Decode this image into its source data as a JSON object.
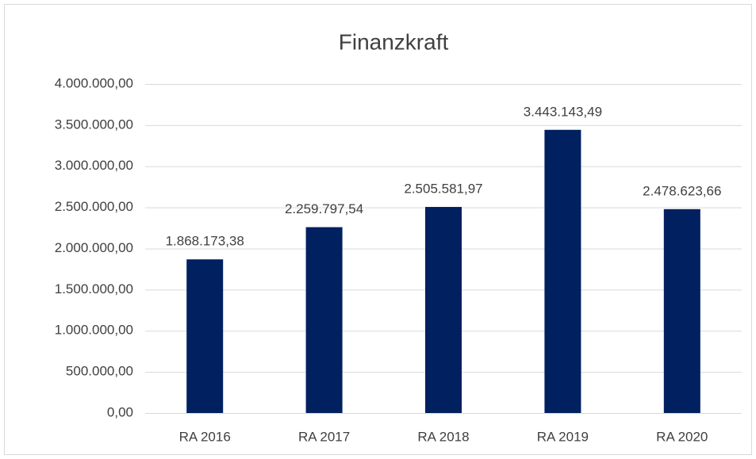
{
  "chart_data": {
    "type": "bar",
    "title": "Finanzkraft",
    "categories": [
      "RA 2016",
      "RA 2017",
      "RA 2018",
      "RA 2019",
      "RA 2020"
    ],
    "values": [
      1868173.38,
      2259797.54,
      2505581.97,
      3443143.49,
      2478623.66
    ],
    "value_labels": [
      "1.868.173,38",
      "2.259.797,54",
      "2.505.581,97",
      "3.443.143,49",
      "2.478.623,66"
    ],
    "color": "#002060",
    "ylim": [
      0,
      4000000
    ],
    "yticks": [
      {
        "value": 0,
        "label": "0,00"
      },
      {
        "value": 500000,
        "label": "500.000,00"
      },
      {
        "value": 1000000,
        "label": "1.000.000,00"
      },
      {
        "value": 1500000,
        "label": "1.500.000,00"
      },
      {
        "value": 2000000,
        "label": "2.000.000,00"
      },
      {
        "value": 2500000,
        "label": "2.500.000,00"
      },
      {
        "value": 3000000,
        "label": "3.000.000,00"
      },
      {
        "value": 3500000,
        "label": "3.500.000,00"
      },
      {
        "value": 4000000,
        "label": "4.000.000,00"
      }
    ],
    "grid": true
  }
}
